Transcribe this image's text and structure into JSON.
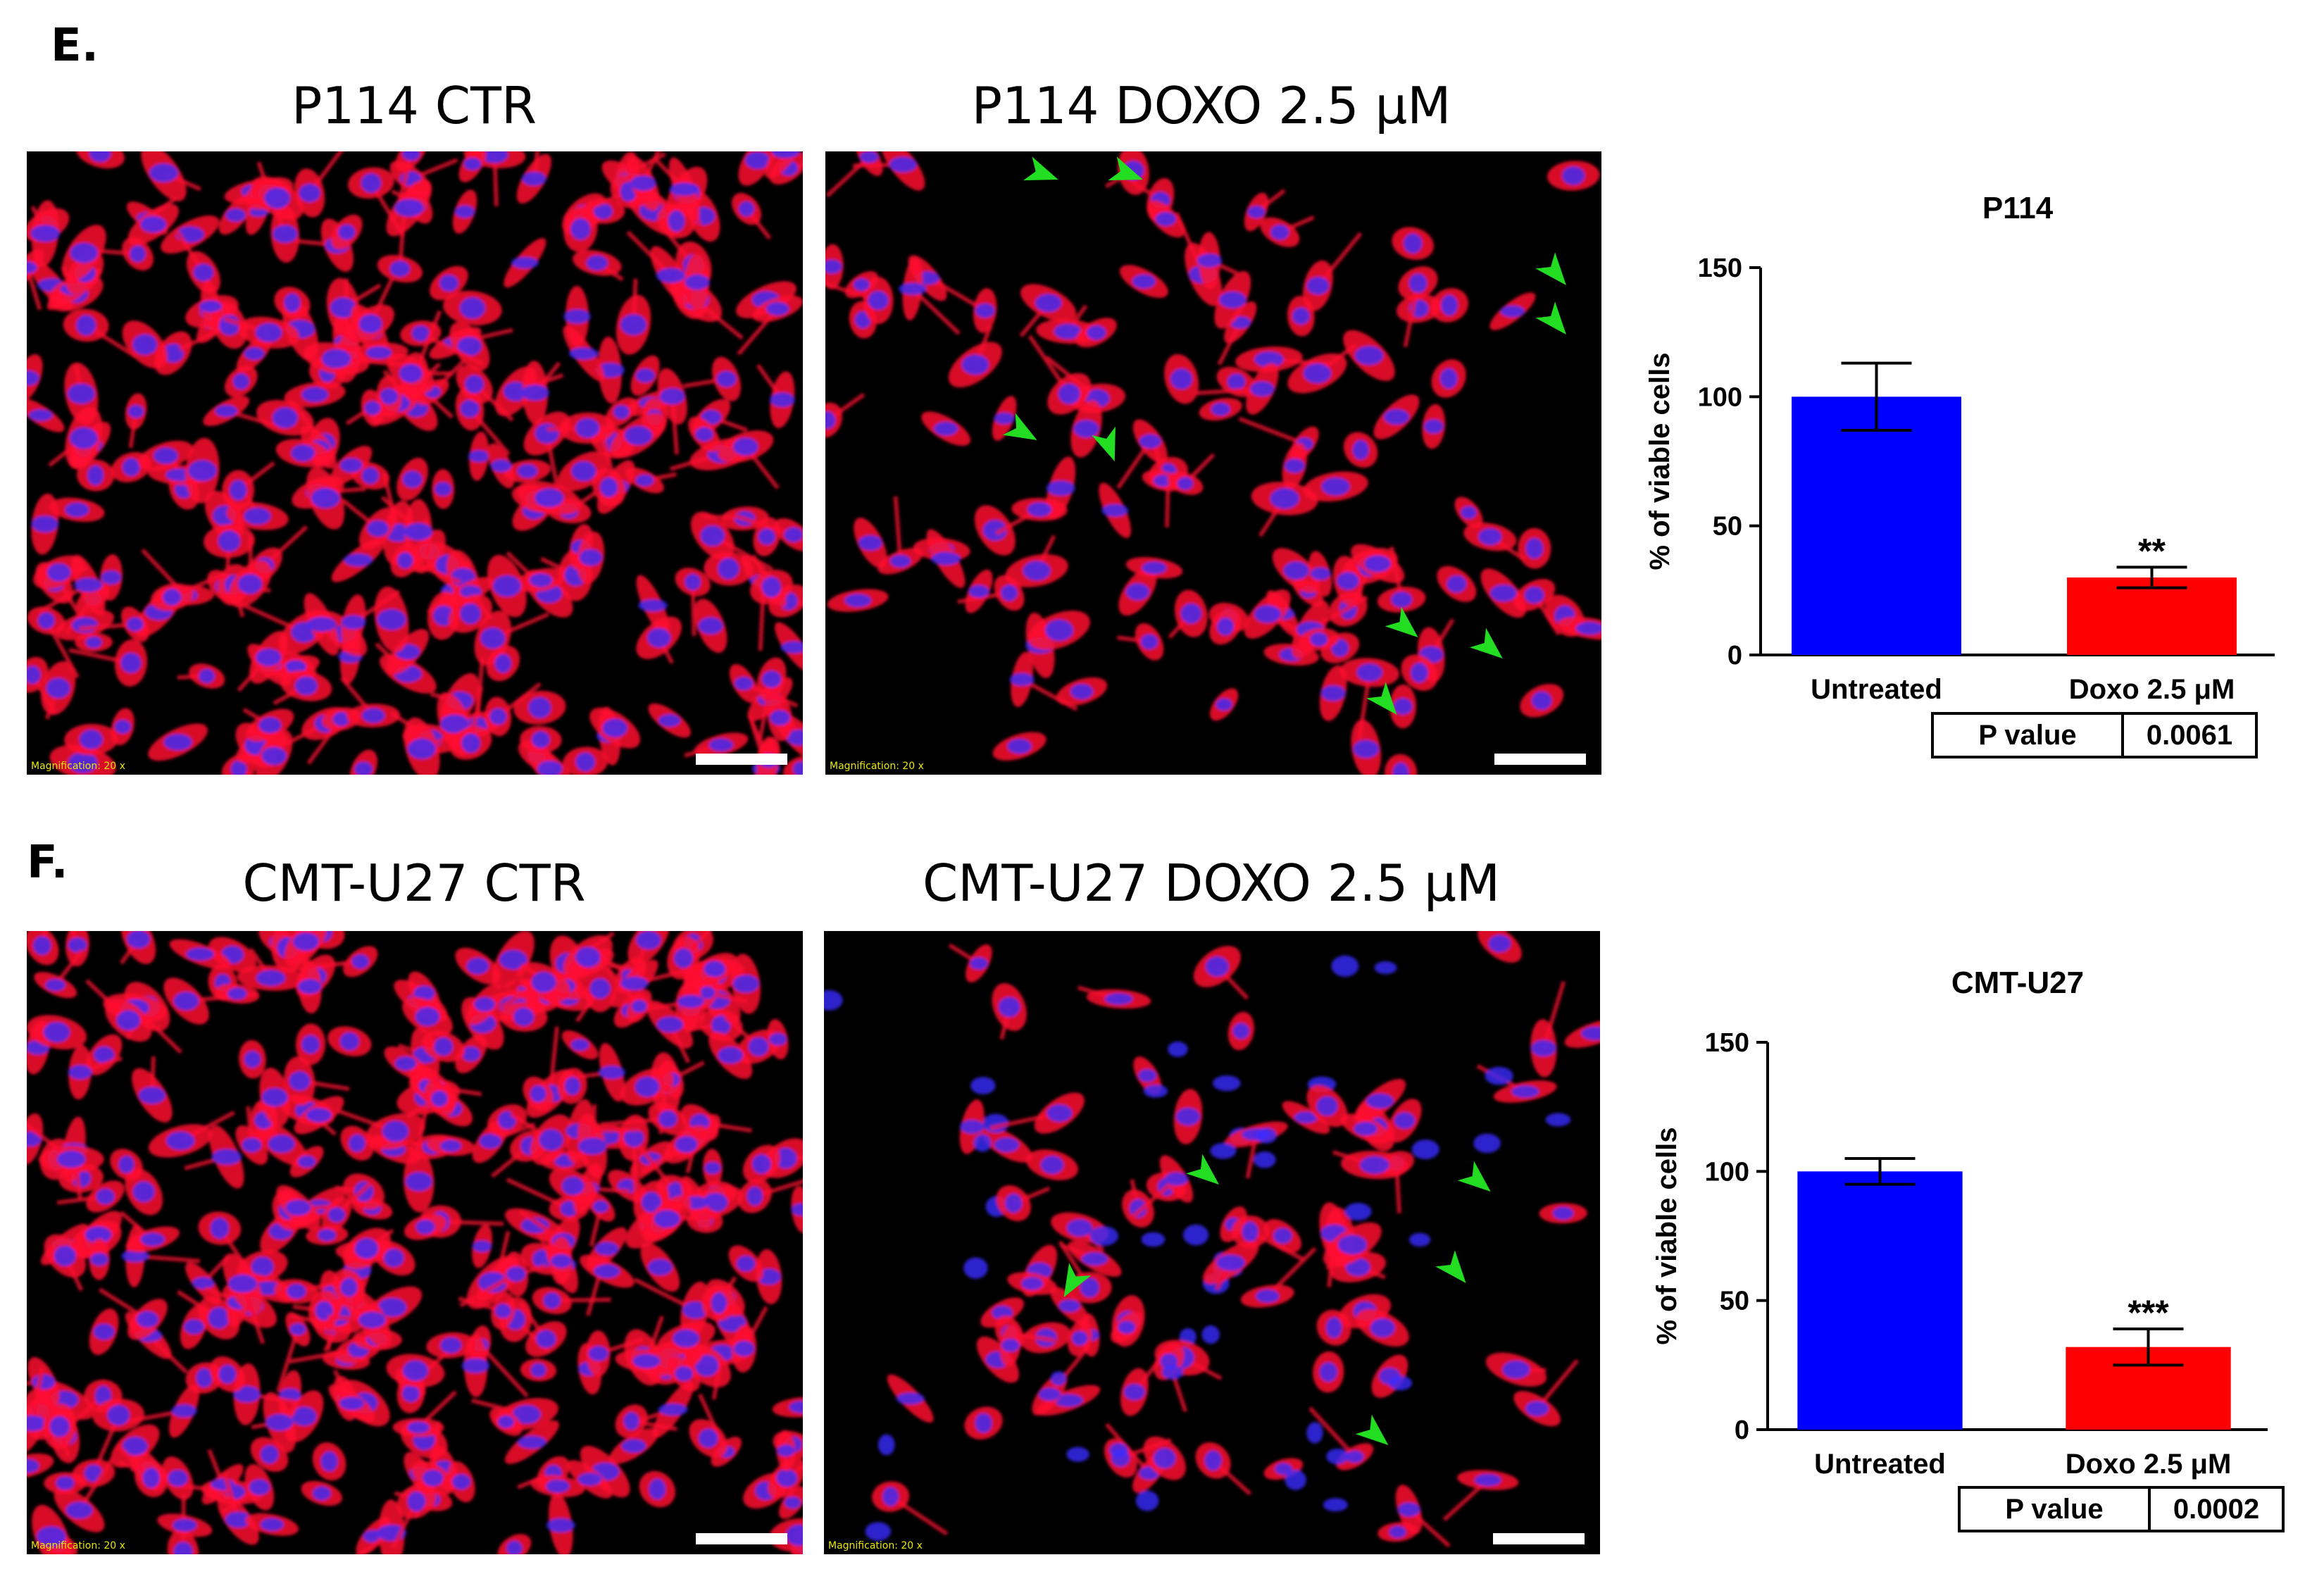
{
  "panels": [
    {
      "letter": "E.",
      "image_titles": [
        "P114 CTR",
        "P114 DOXO 2.5 μM"
      ],
      "image_magnification": "Magnification: 20 x",
      "p_value_label": "P value",
      "p_value": "0.0061"
    },
    {
      "letter": "F.",
      "image_titles": [
        "CMT-U27 CTR",
        "CMT-U27 DOXO 2.5 μM"
      ],
      "image_magnification": "Magnification: 20 x",
      "p_value_label": "P value",
      "p_value": "0.0002"
    }
  ],
  "colors": {
    "untreated": "#0000ff",
    "doxo": "#ff0000",
    "cell_body": "#ff1030",
    "nucleus": "#3a2cff",
    "arrow": "#22dd22"
  },
  "chart_data": [
    {
      "type": "bar",
      "title": "P114",
      "ylabel": "% of viable cells",
      "xlabel": "",
      "categories": [
        "Untreated",
        "Doxo 2.5 μM"
      ],
      "values": [
        100,
        30
      ],
      "errors": [
        13,
        4
      ],
      "significance": [
        "",
        "**"
      ],
      "ylim": [
        0,
        150
      ],
      "yticks": [
        0,
        50,
        100,
        150
      ],
      "grid": false
    },
    {
      "type": "bar",
      "title": "CMT-U27",
      "ylabel": "% of viable cells",
      "xlabel": "",
      "categories": [
        "Untreated",
        "Doxo 2.5 μM"
      ],
      "values": [
        100,
        32
      ],
      "errors": [
        5,
        7
      ],
      "significance": [
        "",
        "***"
      ],
      "ylim": [
        0,
        150
      ],
      "yticks": [
        0,
        50,
        100,
        150
      ],
      "grid": false
    }
  ]
}
